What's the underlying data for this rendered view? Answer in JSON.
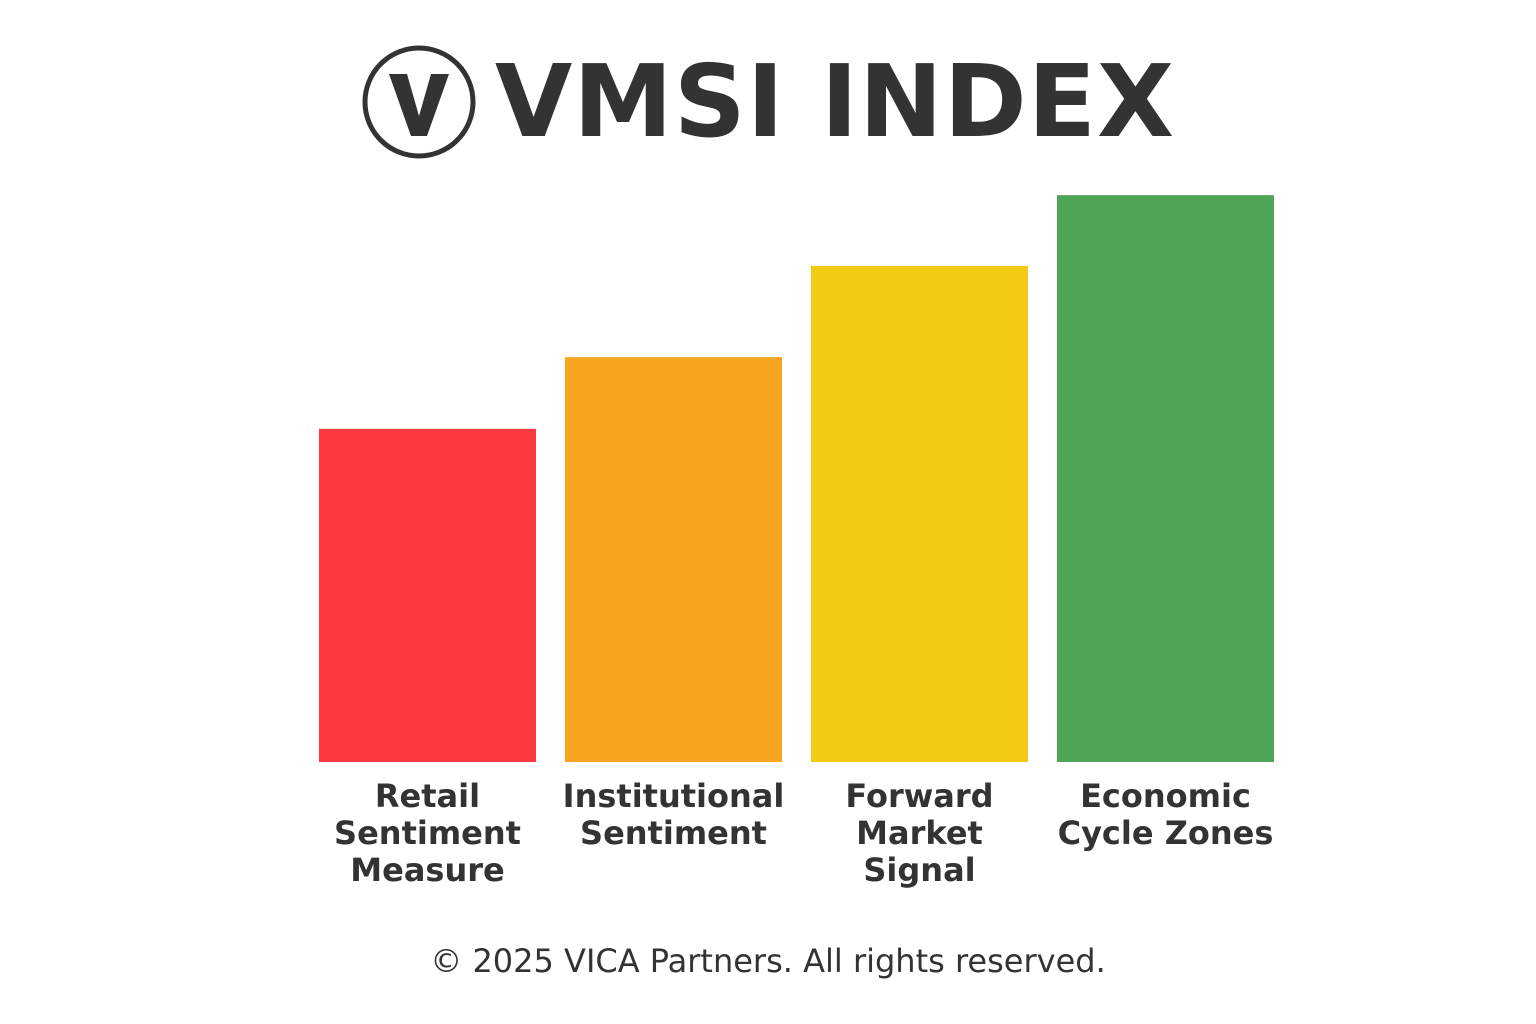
{
  "header": {
    "logo_letter": "V",
    "logo_icon": "circle-v-logo-icon",
    "title": "VMSI INDEX"
  },
  "chart_data": {
    "type": "bar",
    "title": "VMSI INDEX",
    "xlabel": "",
    "ylabel": "",
    "grid": false,
    "legend": "none",
    "categories": [
      [
        "Retail",
        "Sentiment",
        "Measure"
      ],
      [
        "Institutional",
        "Sentiment"
      ],
      [
        "Forward",
        "Market",
        "Signal"
      ],
      [
        "Economic",
        "Cycle Zones"
      ]
    ],
    "values": [
      325,
      395,
      484,
      553
    ],
    "ylim": [
      0,
      600
    ],
    "colors": [
      "#fc3a3f",
      "#f7a51e",
      "#f2cb14",
      "#4ea556"
    ]
  },
  "footer": {
    "copyright": "© 2025 VICA Partners. All rights reserved."
  }
}
